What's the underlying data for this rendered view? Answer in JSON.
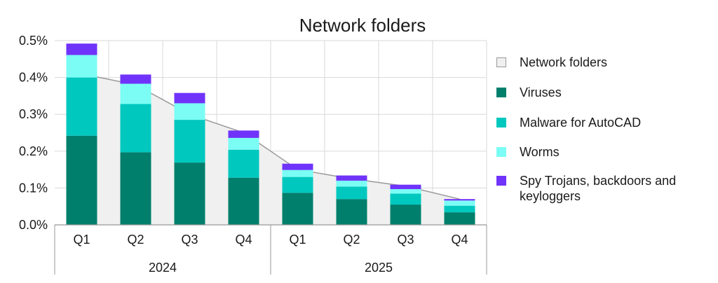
{
  "chart_data": {
    "type": "bar",
    "title": "Network folders",
    "ylim": [
      0,
      0.5
    ],
    "y_ticks": [
      "0.0%",
      "0.1%",
      "0.2%",
      "0.3%",
      "0.4%",
      "0.5%"
    ],
    "y_tick_values": [
      0,
      0.1,
      0.2,
      0.3,
      0.4,
      0.5
    ],
    "grid": true,
    "legend_position": "right",
    "categories": [
      "Q1",
      "Q2",
      "Q3",
      "Q4",
      "Q1",
      "Q2",
      "Q3",
      "Q4"
    ],
    "groups": [
      {
        "label": "2024",
        "categories": [
          0,
          1,
          2,
          3
        ]
      },
      {
        "label": "2025",
        "categories": [
          4,
          5,
          6,
          7
        ]
      }
    ],
    "area_series": {
      "name": "Network folders",
      "values": [
        0.41,
        0.38,
        0.3,
        0.25,
        0.15,
        0.125,
        0.105,
        0.07
      ],
      "color": "#f0f0f0",
      "line_color": "#999999"
    },
    "series": [
      {
        "name": "Viruses",
        "color": "#007f6c",
        "values": [
          0.242,
          0.197,
          0.169,
          0.128,
          0.087,
          0.07,
          0.055,
          0.034
        ]
      },
      {
        "name": "Malware for AutoCAD",
        "color": "#00c8be",
        "values": [
          0.158,
          0.131,
          0.116,
          0.076,
          0.043,
          0.034,
          0.03,
          0.018
        ]
      },
      {
        "name": "Worms",
        "color": "#7bfdf5",
        "values": [
          0.061,
          0.055,
          0.045,
          0.032,
          0.019,
          0.016,
          0.012,
          0.014
        ]
      },
      {
        "name": "Spy Trojans, backdoors and keyloggers",
        "color": "#7033fa",
        "values": [
          0.031,
          0.025,
          0.028,
          0.02,
          0.017,
          0.014,
          0.012,
          0.004
        ]
      }
    ]
  }
}
